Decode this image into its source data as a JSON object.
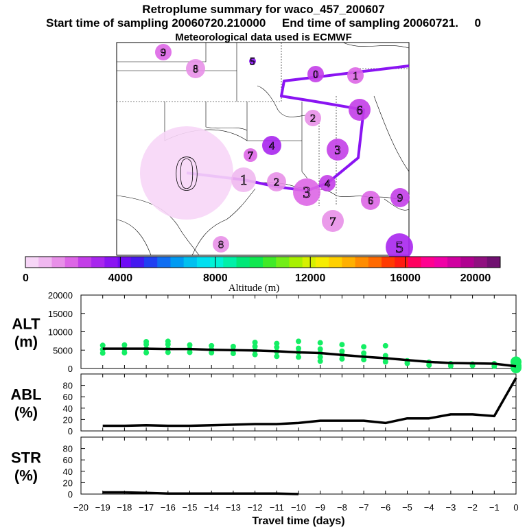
{
  "header": {
    "title": "Retroplume summary for waco_457_200607",
    "subtitle": "Start time of sampling 20060720.210000     End time of sampling 20060721.     0",
    "met_line": "Meteorological data used is ECMWF"
  },
  "colorbar": {
    "ticks": [
      "0",
      "4000",
      "8000",
      "12000",
      "16000",
      "20000"
    ],
    "label": "Altitude  (m)",
    "colors": [
      "#f7d6f7",
      "#f0b8f0",
      "#e890e8",
      "#dd66e6",
      "#c33ee8",
      "#a826ee",
      "#8a14f2",
      "#6e0af4",
      "#4418f0",
      "#2040f2",
      "#0f6ef2",
      "#009af2",
      "#00c0f0",
      "#00dff0",
      "#00f2d6",
      "#00f0a8",
      "#00e878",
      "#10e850",
      "#40ea28",
      "#72ee18",
      "#a8f000",
      "#d6f000",
      "#f6ec00",
      "#ffd000",
      "#ffb000",
      "#ff8c00",
      "#ff6a00",
      "#ff3a00",
      "#ff1a10",
      "#ff0060",
      "#ff0090",
      "#f000a6",
      "#d000a0",
      "#b00090",
      "#901080",
      "#701070"
    ]
  },
  "map": {
    "points": [
      {
        "label": "0",
        "color": "#f7d6f7"
      },
      {
        "label": "1",
        "color": "#f0b8f0"
      },
      {
        "label": "2",
        "color": "#e890e8"
      },
      {
        "label": "3",
        "color": "#dd66e6"
      },
      {
        "label": "4",
        "color": "#c33ee8"
      },
      {
        "label": "5",
        "color": "#a826ee"
      },
      {
        "label": "6",
        "color": "#dd66e6"
      },
      {
        "label": "7",
        "color": "#e890e8"
      },
      {
        "label": "8",
        "color": "#e890e8"
      },
      {
        "label": "9",
        "color": "#dd66e6"
      },
      {
        "label": "0",
        "color": "#c33ee8"
      },
      {
        "label": "1",
        "color": "#dd66e6"
      },
      {
        "label": "2",
        "color": "#e890e8"
      },
      {
        "label": "3",
        "color": "#c33ee8"
      },
      {
        "label": "4",
        "color": "#a826ee"
      },
      {
        "label": "5",
        "color": "#8a14f2"
      },
      {
        "label": "6",
        "color": "#c33ee8"
      },
      {
        "label": "7",
        "color": "#dd66e6"
      },
      {
        "label": "8",
        "color": "#e890e8"
      },
      {
        "label": "9",
        "color": "#c33ee8"
      }
    ]
  },
  "chart_data": [
    {
      "type": "line",
      "name": "ALT",
      "ylabel_lines": [
        "ALT",
        "(m)"
      ],
      "ylim": [
        0,
        20000
      ],
      "yticks": [
        "0",
        "5000",
        "10000",
        "15000",
        "20000"
      ],
      "x": [
        0,
        -1,
        -2,
        -3,
        -4,
        -5,
        -6,
        -7,
        -8,
        -9,
        -10,
        -11,
        -12,
        -13,
        -14,
        -15,
        -16,
        -17,
        -18,
        -19
      ],
      "values": [
        600,
        1300,
        1400,
        1500,
        1800,
        2300,
        2800,
        3200,
        3700,
        4200,
        4400,
        4700,
        4900,
        5000,
        5100,
        5300,
        5300,
        5400,
        5400,
        5400
      ],
      "scatter_points": [
        [
          0,
          1800
        ],
        [
          0,
          800
        ],
        [
          0,
          200
        ],
        [
          -1,
          1300
        ],
        [
          -1,
          600
        ],
        [
          -2,
          1200
        ],
        [
          -2,
          800
        ],
        [
          -3,
          1300
        ],
        [
          -3,
          700
        ],
        [
          -4,
          1700
        ],
        [
          -4,
          900
        ],
        [
          -5,
          2100
        ],
        [
          -5,
          1400
        ],
        [
          -6,
          3500
        ],
        [
          -6,
          2600
        ],
        [
          -6,
          1800
        ],
        [
          -6,
          6200
        ],
        [
          -7,
          4200
        ],
        [
          -7,
          3300
        ],
        [
          -7,
          2400
        ],
        [
          -7,
          5900
        ],
        [
          -8,
          4700
        ],
        [
          -8,
          3700
        ],
        [
          -8,
          2600
        ],
        [
          -8,
          6500
        ],
        [
          -9,
          5300
        ],
        [
          -9,
          4200
        ],
        [
          -9,
          3100
        ],
        [
          -9,
          2000
        ],
        [
          -9,
          7000
        ],
        [
          -10,
          5500
        ],
        [
          -10,
          4400
        ],
        [
          -10,
          3100
        ],
        [
          -10,
          7400
        ],
        [
          -11,
          5800
        ],
        [
          -11,
          4600
        ],
        [
          -11,
          3300
        ],
        [
          -11,
          6800
        ],
        [
          -12,
          6000
        ],
        [
          -12,
          4900
        ],
        [
          -12,
          3800
        ],
        [
          -12,
          7100
        ],
        [
          -13,
          6000
        ],
        [
          -13,
          5000
        ],
        [
          -13,
          4100
        ],
        [
          -14,
          6200
        ],
        [
          -14,
          5200
        ],
        [
          -14,
          4300
        ],
        [
          -15,
          6400
        ],
        [
          -15,
          5300
        ],
        [
          -15,
          4400
        ],
        [
          -16,
          6600
        ],
        [
          -16,
          5400
        ],
        [
          -16,
          4400
        ],
        [
          -16,
          7400
        ],
        [
          -17,
          6600
        ],
        [
          -17,
          5400
        ],
        [
          -17,
          4300
        ],
        [
          -17,
          7300
        ],
        [
          -18,
          6400
        ],
        [
          -18,
          5300
        ],
        [
          -18,
          4300
        ],
        [
          -19,
          6300
        ],
        [
          -19,
          5200
        ],
        [
          -19,
          4200
        ]
      ],
      "scatter_color": "#14ee64"
    },
    {
      "type": "line",
      "name": "ABL",
      "ylabel_lines": [
        "ABL",
        "(%)"
      ],
      "ylim": [
        0,
        100
      ],
      "yticks": [
        "0",
        "20",
        "40",
        "60",
        "80"
      ],
      "x": [
        0,
        -1,
        -2,
        -3,
        -4,
        -5,
        -6,
        -7,
        -8,
        -9,
        -10,
        -11,
        -12,
        -13,
        -14,
        -15,
        -16,
        -17,
        -18,
        -19
      ],
      "values": [
        93,
        26,
        29,
        29,
        22,
        22,
        14,
        18,
        18,
        18,
        14,
        12,
        12,
        11,
        10,
        9,
        9,
        10,
        9,
        9
      ]
    },
    {
      "type": "line",
      "name": "STR",
      "ylabel_lines": [
        "STR",
        "(%)"
      ],
      "ylim": [
        0,
        100
      ],
      "yticks": [
        "0",
        "20",
        "40",
        "60",
        "80"
      ],
      "x": [
        -10,
        -11,
        -12,
        -13,
        -14,
        -15,
        -16,
        -17,
        -18,
        -19
      ],
      "values": [
        0,
        1,
        1,
        1,
        1,
        1,
        1,
        2,
        3,
        3
      ]
    }
  ],
  "xaxis": {
    "ticks": [
      "−20",
      "−19",
      "−18",
      "−17",
      "−16",
      "−15",
      "−14",
      "−13",
      "−12",
      "−11",
      "−10",
      "−9",
      "−8",
      "−7",
      "−6",
      "−5",
      "−4",
      "−3",
      "−2",
      "−1",
      "0"
    ],
    "label": "Travel time (days)"
  }
}
